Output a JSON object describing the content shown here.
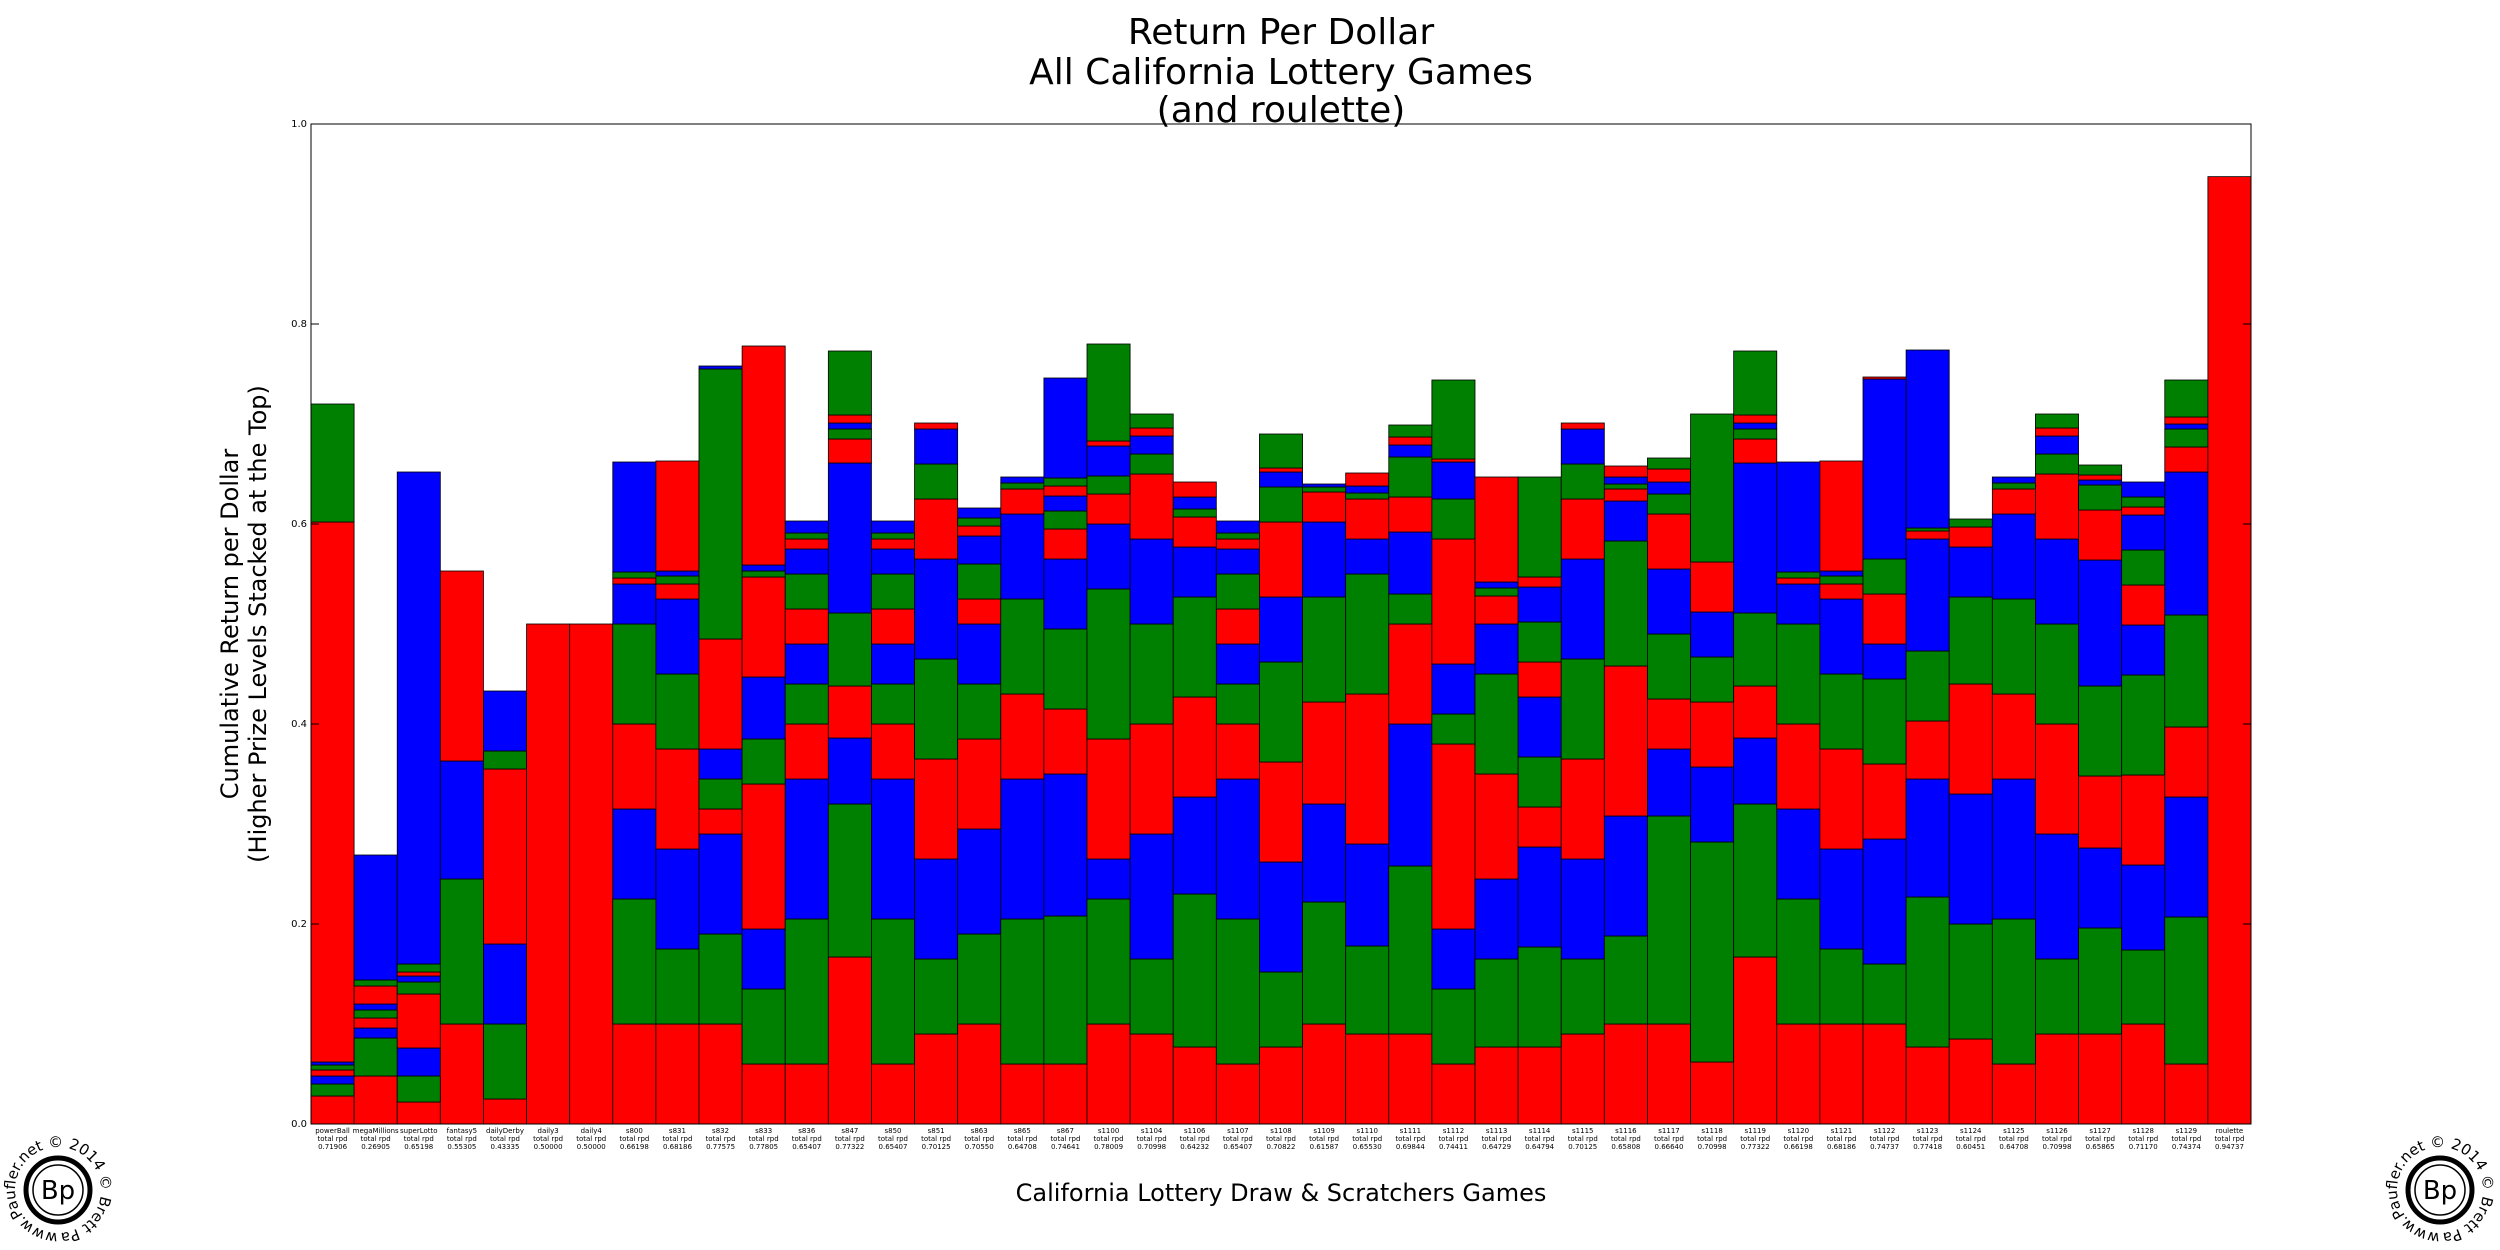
{
  "chart_data": {
    "type": "bar",
    "stacked": true,
    "title": [
      "Return Per Dollar",
      "All California Lottery Games",
      "(and roulette)"
    ],
    "xlabel": "California Lottery Draw & Scratchers Games",
    "ylabel": [
      "Cumulative Return per Dollar",
      "(Higher Prize Levels Stacked at the Top)"
    ],
    "ylim": [
      0,
      1.0
    ],
    "yticks": [
      "0.0",
      "0.2",
      "0.4",
      "0.6",
      "0.8",
      "1.0"
    ],
    "grid": false,
    "legend": "none",
    "segment_colors": [
      "#ff0000",
      "#008000",
      "#0000ff"
    ],
    "total_label_prefix": "total rpd",
    "categories": [
      {
        "name": "powerBall",
        "total": "0.71906",
        "segments": [
          0.028,
          0.012,
          0.008,
          0.006,
          0.005,
          0.003,
          0.54,
          0.118
        ]
      },
      {
        "name": "megaMillions",
        "total": "0.26905",
        "segments": [
          0.048,
          0.038,
          0.01,
          0.01,
          0.008,
          0.006,
          0.018,
          0.006,
          0.125
        ]
      },
      {
        "name": "superLotto",
        "total": "0.65198",
        "segments": [
          0.022,
          0.026,
          0.028,
          0.054,
          0.012,
          0.006,
          0.004,
          0.008,
          0.492
        ]
      },
      {
        "name": "fantasy5",
        "total": "0.55305",
        "segments": [
          0.1,
          0.145,
          0.118,
          0.19
        ]
      },
      {
        "name": "dailyDerby",
        "total": "0.43335",
        "segments": [
          0.025,
          0.075,
          0.08,
          0.175,
          0.018,
          0.06
        ]
      },
      {
        "name": "daily3",
        "total": "0.50000",
        "segments": [
          0.5
        ]
      },
      {
        "name": "daily4",
        "total": "0.50000",
        "segments": [
          0.5
        ]
      },
      {
        "name": "s800",
        "total": "0.66198",
        "segments": [
          0.1,
          0.125,
          0.09,
          0.085,
          0.1,
          0.04,
          0.006,
          0.006,
          0.11
        ]
      },
      {
        "name": "s831",
        "total": "0.68186",
        "segments": [
          0.1,
          0.075,
          0.1,
          0.1,
          0.075,
          0.075,
          0.015,
          0.008,
          0.005,
          0.11
        ]
      },
      {
        "name": "s832",
        "total": "0.77575",
        "segments": [
          0.1,
          0.09,
          0.1,
          0.025,
          0.03,
          0.03,
          0.11,
          0.27,
          0.003
        ]
      },
      {
        "name": "s833",
        "total": "0.77805",
        "segments": [
          0.06,
          0.075,
          0.06,
          0.145,
          0.045,
          0.062,
          0.1,
          0.006,
          0.006,
          0.219
        ]
      },
      {
        "name": "s836",
        "total": "0.65407",
        "segments": [
          0.06,
          0.145,
          0.14,
          0.055,
          0.04,
          0.04,
          0.035,
          0.035,
          0.025,
          0.01,
          0.006,
          0.012
        ]
      },
      {
        "name": "s847",
        "total": "0.77322",
        "segments": [
          0.167,
          0.153,
          0.066,
          0.052,
          0.073,
          0.15,
          0.024,
          0.01,
          0.006,
          0.008,
          0.064
        ]
      },
      {
        "name": "s850",
        "total": "0.65407",
        "segments": [
          0.06,
          0.145,
          0.14,
          0.055,
          0.04,
          0.04,
          0.035,
          0.035,
          0.025,
          0.01,
          0.006,
          0.012
        ]
      },
      {
        "name": "s851",
        "total": "0.70125",
        "segments": [
          0.09,
          0.075,
          0.1,
          0.1,
          0.1,
          0.1,
          0.06,
          0.035,
          0.035,
          0.006
        ]
      },
      {
        "name": "s863",
        "total": "0.70550",
        "segments": [
          0.1,
          0.09,
          0.105,
          0.09,
          0.055,
          0.06,
          0.025,
          0.035,
          0.028,
          0.01,
          0.008,
          0.01
        ]
      },
      {
        "name": "s865",
        "total": "0.64708",
        "segments": [
          0.06,
          0.145,
          0.14,
          0.085,
          0.095,
          0.085,
          0.025,
          0.006,
          0.006
        ]
      },
      {
        "name": "s867",
        "total": "0.74641",
        "segments": [
          0.06,
          0.148,
          0.142,
          0.065,
          0.08,
          0.07,
          0.03,
          0.018,
          0.015,
          0.01,
          0.008,
          0.1
        ]
      },
      {
        "name": "s1100",
        "total": "0.78009",
        "segments": [
          0.1,
          0.125,
          0.04,
          0.12,
          0.15,
          0.065,
          0.03,
          0.018,
          0.03,
          0.005,
          0.097
        ]
      },
      {
        "name": "s1104",
        "total": "0.70998",
        "segments": [
          0.09,
          0.075,
          0.125,
          0.11,
          0.1,
          0.085,
          0.065,
          0.02,
          0.018,
          0.008,
          0.014
        ]
      },
      {
        "name": "s1106",
        "total": "0.64232",
        "segments": [
          0.077,
          0.153,
          0.097,
          0.1,
          0.1,
          0.05,
          0.03,
          0.008,
          0.012,
          0.015
        ]
      },
      {
        "name": "s1107",
        "total": "0.65407",
        "segments": [
          0.06,
          0.145,
          0.14,
          0.055,
          0.04,
          0.04,
          0.035,
          0.035,
          0.025,
          0.01,
          0.006,
          0.012
        ]
      },
      {
        "name": "s1108",
        "total": "0.70822",
        "segments": [
          0.077,
          0.075,
          0.11,
          0.1,
          0.1,
          0.065,
          0.075,
          0.035,
          0.015,
          0.004,
          0.034
        ]
      },
      {
        "name": "s1109",
        "total": "0.61587",
        "segments": [
          0.1,
          0.122,
          0.098,
          0.102,
          0.105,
          0.075,
          0.03,
          0.005,
          0.003
        ]
      },
      {
        "name": "s1110",
        "total": "0.65530",
        "segments": [
          0.09,
          0.088,
          0.102,
          0.15,
          0.12,
          0.035,
          0.04,
          0.006,
          0.007,
          0.013
        ]
      },
      {
        "name": "s1111",
        "total": "0.69844",
        "segments": [
          0.09,
          0.168,
          0.142,
          0.1,
          0.03,
          0.062,
          0.035,
          0.04,
          0.012,
          0.008,
          0.012
        ]
      },
      {
        "name": "s1112",
        "total": "0.74411",
        "segments": [
          0.06,
          0.075,
          0.06,
          0.185,
          0.03,
          0.05,
          0.125,
          0.04,
          0.037,
          0.003,
          0.079
        ]
      },
      {
        "name": "s1113",
        "total": "0.64729",
        "segments": [
          0.077,
          0.088,
          0.08,
          0.105,
          0.1,
          0.05,
          0.028,
          0.008,
          0.006,
          0.105
        ]
      },
      {
        "name": "s1114",
        "total": "0.64794",
        "segments": [
          0.077,
          0.1,
          0.1,
          0.04,
          0.05,
          0.06,
          0.035,
          0.04,
          0.035,
          0.01,
          0.1
        ]
      },
      {
        "name": "s1115",
        "total": "0.70125",
        "segments": [
          0.09,
          0.075,
          0.1,
          0.1,
          0.1,
          0.1,
          0.06,
          0.035,
          0.035,
          0.006
        ]
      },
      {
        "name": "s1116",
        "total": "0.65808",
        "segments": [
          0.1,
          0.088,
          0.12,
          0.15,
          0.125,
          0.04,
          0.012,
          0.005,
          0.007,
          0.011
        ]
      },
      {
        "name": "s1117",
        "total": "0.66640",
        "segments": [
          0.1,
          0.208,
          0.067,
          0.05,
          0.065,
          0.065,
          0.055,
          0.02,
          0.012,
          0.013,
          0.011
        ]
      },
      {
        "name": "s1118",
        "total": "0.70998",
        "segments": [
          0.062,
          0.22,
          0.075,
          0.065,
          0.045,
          0.045,
          0.05,
          0.148
        ]
      },
      {
        "name": "s1119",
        "total": "0.77322",
        "segments": [
          0.167,
          0.153,
          0.066,
          0.052,
          0.073,
          0.15,
          0.024,
          0.01,
          0.006,
          0.008,
          0.064
        ]
      },
      {
        "name": "s1120",
        "total": "0.66198",
        "segments": [
          0.1,
          0.125,
          0.09,
          0.085,
          0.1,
          0.04,
          0.006,
          0.006,
          0.11
        ]
      },
      {
        "name": "s1121",
        "total": "0.68186",
        "segments": [
          0.1,
          0.075,
          0.1,
          0.1,
          0.075,
          0.075,
          0.015,
          0.008,
          0.005,
          0.11
        ]
      },
      {
        "name": "s1122",
        "total": "0.74737",
        "segments": [
          0.1,
          0.06,
          0.125,
          0.075,
          0.085,
          0.035,
          0.05,
          0.035,
          0.18,
          0.002
        ]
      },
      {
        "name": "s1123",
        "total": "0.77418",
        "segments": [
          0.077,
          0.15,
          0.118,
          0.058,
          0.07,
          0.112,
          0.008,
          0.003,
          0.178
        ]
      },
      {
        "name": "s1124",
        "total": "0.60451",
        "segments": [
          0.085,
          0.115,
          0.13,
          0.11,
          0.087,
          0.05,
          0.02,
          0.008
        ]
      },
      {
        "name": "s1125",
        "total": "0.64708",
        "segments": [
          0.06,
          0.145,
          0.14,
          0.085,
          0.095,
          0.085,
          0.025,
          0.006,
          0.006
        ]
      },
      {
        "name": "s1126",
        "total": "0.70998",
        "segments": [
          0.09,
          0.075,
          0.125,
          0.11,
          0.1,
          0.085,
          0.065,
          0.02,
          0.018,
          0.008,
          0.014
        ]
      },
      {
        "name": "s1127",
        "total": "0.65865",
        "segments": [
          0.09,
          0.106,
          0.08,
          0.072,
          0.09,
          0.126,
          0.05,
          0.025,
          0.005,
          0.005,
          0.01
        ]
      },
      {
        "name": "s1128",
        "total": "0.71170",
        "segments": [
          0.1,
          0.074,
          0.085,
          0.09,
          0.1,
          0.05,
          0.04,
          0.035,
          0.035,
          0.008,
          0.01,
          0.015
        ]
      },
      {
        "name": "s1129",
        "total": "0.74374",
        "segments": [
          0.06,
          0.147,
          0.12,
          0.07,
          0.112,
          0.143,
          0.025,
          0.018,
          0.005,
          0.007,
          0.037
        ]
      },
      {
        "name": "roulette",
        "total": "0.94737",
        "segments": [
          0.94737
        ]
      }
    ]
  },
  "logo": {
    "monogram": "Bp",
    "ring_text": "www.Paufler.net © 2014 © Brett Paufler © "
  }
}
